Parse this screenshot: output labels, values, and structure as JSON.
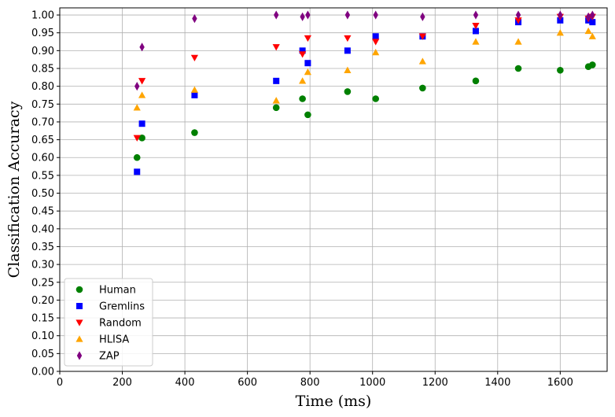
{
  "chart_data": {
    "type": "scatter",
    "title": "",
    "xlabel": "Time (ms)",
    "ylabel": "Classification Accuracy",
    "xlim": [
      0,
      1750
    ],
    "ylim": [
      0,
      1.02
    ],
    "xticks": [
      0,
      200,
      400,
      600,
      800,
      1000,
      1200,
      1400,
      1600
    ],
    "yticks": [
      0.0,
      0.05,
      0.1,
      0.15,
      0.2,
      0.25,
      0.3,
      0.35,
      0.4,
      0.45,
      0.5,
      0.55,
      0.6,
      0.65,
      0.7,
      0.75,
      0.8,
      0.85,
      0.9,
      0.95,
      1.0
    ],
    "grid": true,
    "legend_position": "lower-left",
    "series": [
      {
        "name": "Human",
        "marker": "circle",
        "color": "#008000",
        "points": [
          [
            247,
            0.6
          ],
          [
            263,
            0.655
          ],
          [
            431,
            0.67
          ],
          [
            692,
            0.74
          ],
          [
            776,
            0.765
          ],
          [
            793,
            0.72
          ],
          [
            920,
            0.785
          ],
          [
            1010,
            0.765
          ],
          [
            1160,
            0.795
          ],
          [
            1330,
            0.815
          ],
          [
            1466,
            0.85
          ],
          [
            1600,
            0.845
          ],
          [
            1690,
            0.855
          ],
          [
            1703,
            0.86
          ]
        ]
      },
      {
        "name": "Gremlins",
        "marker": "square",
        "color": "#0000ff",
        "points": [
          [
            247,
            0.56
          ],
          [
            263,
            0.695
          ],
          [
            431,
            0.775
          ],
          [
            692,
            0.815
          ],
          [
            776,
            0.9
          ],
          [
            793,
            0.865
          ],
          [
            920,
            0.9
          ],
          [
            1010,
            0.94
          ],
          [
            1160,
            0.94
          ],
          [
            1330,
            0.955
          ],
          [
            1466,
            0.98
          ],
          [
            1600,
            0.985
          ],
          [
            1690,
            0.985
          ],
          [
            1703,
            0.98
          ]
        ]
      },
      {
        "name": "Random",
        "marker": "triangle-down",
        "color": "#ff0000",
        "points": [
          [
            247,
            0.655
          ],
          [
            263,
            0.815
          ],
          [
            431,
            0.88
          ],
          [
            692,
            0.91
          ],
          [
            776,
            0.89
          ],
          [
            793,
            0.935
          ],
          [
            920,
            0.935
          ],
          [
            1010,
            0.925
          ],
          [
            1160,
            0.94
          ],
          [
            1330,
            0.97
          ],
          [
            1466,
            0.985
          ],
          [
            1600,
            0.995
          ],
          [
            1690,
            0.99
          ],
          [
            1703,
            0.995
          ]
        ]
      },
      {
        "name": "HLISA",
        "marker": "triangle-up",
        "color": "#ffa500",
        "points": [
          [
            247,
            0.74
          ],
          [
            263,
            0.775
          ],
          [
            431,
            0.79
          ],
          [
            692,
            0.76
          ],
          [
            776,
            0.815
          ],
          [
            793,
            0.84
          ],
          [
            920,
            0.845
          ],
          [
            1010,
            0.895
          ],
          [
            1160,
            0.87
          ],
          [
            1330,
            0.925
          ],
          [
            1466,
            0.925
          ],
          [
            1600,
            0.95
          ],
          [
            1690,
            0.955
          ],
          [
            1703,
            0.94
          ]
        ]
      },
      {
        "name": "ZAP",
        "marker": "thin-diamond",
        "color": "#800080",
        "points": [
          [
            247,
            0.8
          ],
          [
            263,
            0.91
          ],
          [
            431,
            0.99
          ],
          [
            692,
            1.0
          ],
          [
            776,
            0.995
          ],
          [
            793,
            1.0
          ],
          [
            920,
            1.0
          ],
          [
            1010,
            1.0
          ],
          [
            1160,
            0.995
          ],
          [
            1330,
            1.0
          ],
          [
            1466,
            1.0
          ],
          [
            1600,
            1.0
          ],
          [
            1690,
            0.995
          ],
          [
            1703,
            1.0
          ]
        ]
      }
    ]
  }
}
